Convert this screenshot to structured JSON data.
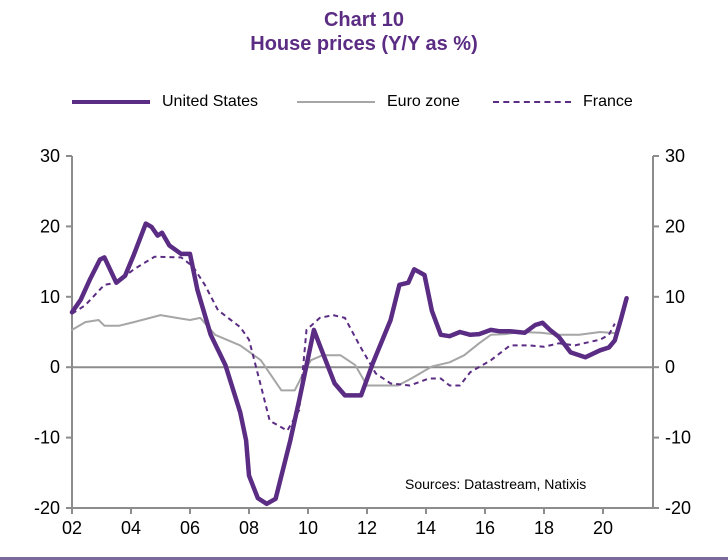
{
  "chart_data": {
    "type": "line",
    "title": "Chart 10",
    "subtitle": "House prices (Y/Y as %)",
    "xlabel": "",
    "ylabel": "",
    "xlim": [
      2002,
      2021.7
    ],
    "ylim": [
      -20,
      30
    ],
    "x_ticks": [
      2002,
      2004,
      2006,
      2008,
      2010,
      2012,
      2014,
      2016,
      2018,
      2020
    ],
    "x_tick_labels": [
      "02",
      "04",
      "06",
      "08",
      "10",
      "12",
      "14",
      "16",
      "18",
      "20"
    ],
    "y_ticks": [
      30,
      20,
      10,
      0,
      -10,
      -20
    ],
    "y_tick_labels": [
      "30",
      "20",
      "10",
      "0",
      "-10",
      "-20"
    ],
    "y2_tick_labels": [
      "30",
      "20",
      "10",
      "0",
      "-10",
      "-20"
    ],
    "grid": false,
    "zero_line": true,
    "legend_position": "top",
    "annotation": "Sources: Datastream,  Natixis",
    "series": [
      {
        "name": "United States",
        "color": "#5B2C83",
        "style": "solid-thick",
        "x": [
          2002.0,
          2002.3,
          2002.6,
          2002.95,
          2003.1,
          2003.5,
          2003.8,
          2004.1,
          2004.5,
          2004.7,
          2004.9,
          2005.05,
          2005.3,
          2005.7,
          2006.0,
          2006.25,
          2006.7,
          2007.2,
          2007.7,
          2007.9,
          2008.0,
          2008.3,
          2008.6,
          2008.9,
          2009.4,
          2009.7,
          2010.2,
          2010.4,
          2010.9,
          2011.25,
          2011.8,
          2012.2,
          2012.8,
          2013.1,
          2013.4,
          2013.6,
          2013.95,
          2014.2,
          2014.5,
          2014.8,
          2015.15,
          2015.5,
          2015.8,
          2016.2,
          2016.5,
          2016.85,
          2017.35,
          2017.7,
          2017.95,
          2018.2,
          2018.5,
          2018.9,
          2019.4,
          2019.9,
          2020.2,
          2020.4,
          2020.6,
          2020.8
        ],
        "values": [
          7.8,
          9.6,
          12.4,
          15.3,
          15.6,
          12.0,
          13.0,
          16.0,
          20.4,
          19.9,
          18.7,
          19.1,
          17.3,
          16.1,
          16.1,
          11.0,
          4.6,
          0.3,
          -6.4,
          -10.4,
          -15.4,
          -18.6,
          -19.4,
          -18.7,
          -10.4,
          -4.7,
          5.3,
          3.1,
          -2.3,
          -4.0,
          -4.0,
          0.6,
          6.7,
          11.7,
          12.0,
          13.9,
          13.1,
          8.0,
          4.6,
          4.4,
          5.0,
          4.6,
          4.7,
          5.3,
          5.1,
          5.1,
          4.9,
          6.0,
          6.3,
          5.3,
          4.3,
          2.1,
          1.4,
          2.4,
          2.8,
          3.8,
          6.7,
          9.8
        ]
      },
      {
        "name": "Euro zone",
        "color": "#A6A6A6",
        "style": "solid-thin",
        "x": [
          2002.0,
          2002.45,
          2002.9,
          2003.1,
          2003.6,
          2004.1,
          2005.0,
          2005.7,
          2006.0,
          2006.35,
          2006.85,
          2007.7,
          2008.4,
          2009.1,
          2009.55,
          2009.9,
          2010.1,
          2010.5,
          2011.1,
          2011.6,
          2012.0,
          2013.05,
          2013.5,
          2014.2,
          2014.8,
          2015.3,
          2015.8,
          2016.2,
          2016.7,
          2017.2,
          2017.9,
          2018.5,
          2019.2,
          2019.9,
          2020.5
        ],
        "values": [
          5.3,
          6.4,
          6.7,
          5.9,
          5.9,
          6.4,
          7.4,
          6.9,
          6.7,
          7.0,
          4.6,
          3.1,
          1.0,
          -3.3,
          -3.3,
          -0.4,
          1.0,
          1.7,
          1.7,
          0.3,
          -2.6,
          -2.6,
          -1.6,
          0.1,
          0.7,
          1.7,
          3.4,
          4.6,
          4.7,
          5.0,
          4.9,
          4.6,
          4.6,
          5.0,
          4.8
        ]
      },
      {
        "name": "France",
        "color": "#5B2C83",
        "style": "dashed",
        "x": [
          2002.0,
          2002.45,
          2003.1,
          2003.5,
          2004.1,
          2004.8,
          2005.7,
          2006.1,
          2006.5,
          2006.95,
          2007.7,
          2008.0,
          2008.4,
          2008.7,
          2009.3,
          2009.7,
          2009.95,
          2010.4,
          2010.85,
          2011.25,
          2011.75,
          2012.3,
          2012.8,
          2013.45,
          2014.1,
          2014.5,
          2014.8,
          2015.15,
          2015.5,
          2016.2,
          2016.85,
          2017.5,
          2018.0,
          2018.5,
          2019.05,
          2019.55,
          2019.9,
          2020.2,
          2020.4
        ],
        "values": [
          7.6,
          8.8,
          11.7,
          12.0,
          13.9,
          15.7,
          15.6,
          14.3,
          11.7,
          8.1,
          5.7,
          3.9,
          -2.6,
          -7.6,
          -9.0,
          -6.1,
          5.3,
          7.0,
          7.4,
          7.0,
          3.1,
          -0.9,
          -2.3,
          -2.6,
          -1.6,
          -1.6,
          -2.6,
          -2.6,
          -0.7,
          1.0,
          3.1,
          3.1,
          2.9,
          3.4,
          3.1,
          3.6,
          3.9,
          4.6,
          6.2
        ]
      }
    ]
  },
  "header": {
    "title_line1": "Chart 10",
    "title_line2": "House prices (Y/Y as %)"
  },
  "legend": [
    {
      "label": "United States"
    },
    {
      "label": "Euro zone"
    },
    {
      "label": "France"
    }
  ]
}
